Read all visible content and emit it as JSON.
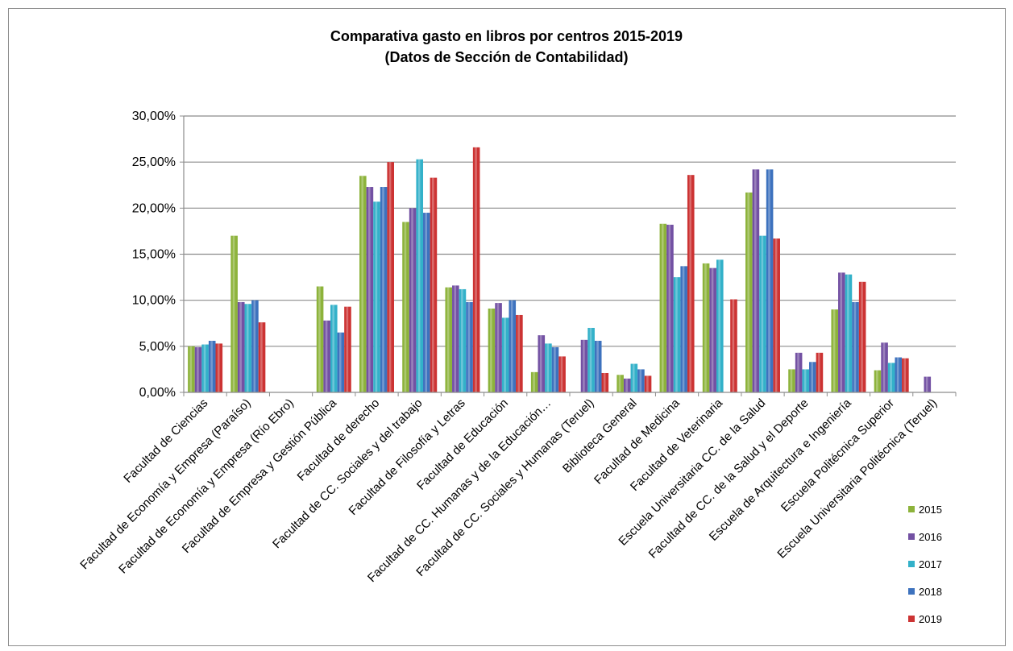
{
  "chart_data": {
    "type": "bar",
    "title": "Comparativa gasto en libros por centros 2015-2019",
    "subtitle": "(Datos de Sección de Contabilidad)",
    "ylim": [
      0,
      30
    ],
    "yticks": [
      "0,00%",
      "5,00%",
      "10,00%",
      "15,00%",
      "20,00%",
      "25,00%",
      "30,00%"
    ],
    "grid": true,
    "legend_position": "bottom-right",
    "categories": [
      "Facultad de Ciencias",
      "Facultad de Economía y Empresa (Paraíso)",
      "Facultad de Economía y Empresa (Río Ebro)",
      "Facultad de Empresa y Gestión Pública",
      "Facultad de derecho",
      "Facultad de CC. Sociales y del trabajo",
      "Facultad de Filosofía y Letras",
      "Facultad de Educación",
      "Facultad de CC. Humanas y de la Educación…",
      "Facultad de CC. Sociales y Humanas (Teruel)",
      "Biblioteca General",
      "Facultad de Medicina",
      "Facultad de Veterinaria",
      "Escuela Universitaria CC. de la Salud",
      "Facultad de CC. de la Salud y el Deporte",
      "Escuela de Arquitectura e Ingeniería",
      "Escuela Politécnica Superior",
      "Escuela Universitaria Politécnica (Teruel)"
    ],
    "series": [
      {
        "name": "2015",
        "color": "#8db33b",
        "values": [
          5.0,
          17.0,
          null,
          11.5,
          23.5,
          18.5,
          11.4,
          9.1,
          2.2,
          null,
          1.9,
          18.3,
          14.0,
          21.7,
          2.5,
          9.0,
          2.4,
          null
        ]
      },
      {
        "name": "2016",
        "color": "#7351a3",
        "values": [
          4.9,
          9.8,
          null,
          7.8,
          22.3,
          20.0,
          11.6,
          9.7,
          6.2,
          5.7,
          1.5,
          18.2,
          13.5,
          24.2,
          4.3,
          13.0,
          5.4,
          1.7
        ]
      },
      {
        "name": "2017",
        "color": "#33b1c9",
        "values": [
          5.2,
          9.6,
          null,
          9.5,
          20.7,
          25.3,
          11.2,
          8.1,
          5.3,
          7.0,
          3.1,
          12.5,
          14.4,
          17.0,
          2.5,
          12.8,
          3.2,
          null
        ]
      },
      {
        "name": "2018",
        "color": "#3d72be",
        "values": [
          5.6,
          10.0,
          null,
          6.5,
          22.3,
          19.5,
          9.8,
          10.0,
          4.9,
          5.6,
          2.5,
          13.7,
          null,
          24.2,
          3.3,
          9.8,
          3.8,
          null
        ]
      },
      {
        "name": "2019",
        "color": "#cc3333",
        "values": [
          5.3,
          7.6,
          null,
          9.3,
          25.0,
          23.3,
          26.6,
          8.4,
          3.9,
          2.1,
          1.8,
          23.6,
          10.1,
          16.7,
          4.3,
          12.0,
          3.7,
          null
        ]
      }
    ]
  }
}
